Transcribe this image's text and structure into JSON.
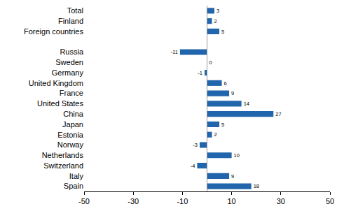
{
  "chart_data": {
    "type": "bar",
    "orientation": "horizontal",
    "categories": [
      "Total",
      "Finland",
      "Foreign countries",
      null,
      "Russia",
      "Sweden",
      "Germany",
      "United Kingdom",
      "France",
      "United States",
      "China",
      "Japan",
      "Estonia",
      "Norway",
      "Netherlands",
      "Switzerland",
      "Italy",
      "Spain"
    ],
    "values": [
      3,
      2,
      5,
      null,
      -11,
      0,
      -1,
      6,
      9,
      14,
      27,
      5,
      2,
      -3,
      10,
      -4,
      9,
      18
    ],
    "color": "#2166ac",
    "xlim": [
      -50,
      50
    ],
    "xticks": [
      -50,
      -30,
      -10,
      10,
      30,
      50
    ],
    "grid": false,
    "data_labels": true
  }
}
